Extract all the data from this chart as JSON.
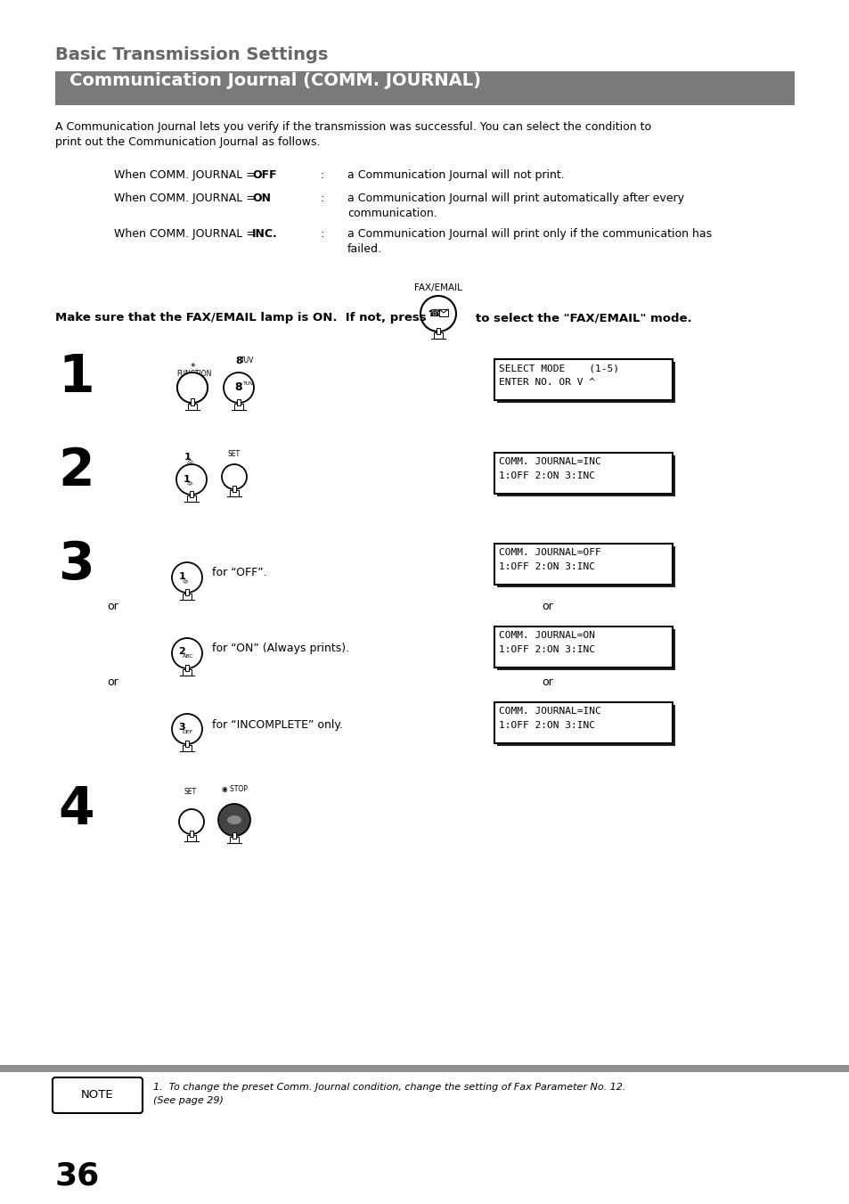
{
  "page_bg": "#ffffff",
  "title_text": "Basic Transmission Settings",
  "header_bg": "#7a7a7a",
  "header_text": "Communication Journal (COMM. JOURNAL)",
  "header_text_color": "#ffffff",
  "intro_line1": "A Communication Journal lets you verify if the transmission was successful. You can select the condition to",
  "intro_line2": "print out the Communication Journal as follows.",
  "cond1_plain": "When COMM. JOURNAL = ",
  "cond1_bold": "OFF",
  "cond1_desc": "a Communication Journal will not print.",
  "cond2_plain": "When COMM. JOURNAL = ",
  "cond2_bold": "ON",
  "cond2_desc1": "a Communication Journal will print automatically after every",
  "cond2_desc2": "communication.",
  "cond3_plain": "When COMM. JOURNAL = ",
  "cond3_bold": "INC.",
  "cond3_desc1": "a Communication Journal will print only if the communication has",
  "cond3_desc2": "failed.",
  "fax_label": "FAX/EMAIL",
  "fax_instruction_1": "Make sure that the FAX/EMAIL lamp is ON.  If not, press",
  "fax_instruction_2": "to select the \"FAX/EMAIL\" mode.",
  "step1_display": "SELECT MODE    (1-5)\nENTER NO. OR V ^",
  "step2_display": "COMM. JOURNAL=INC\n1:OFF 2:ON 3:INC",
  "step3a_display": "COMM. JOURNAL=OFF\n1:OFF 2:ON 3:INC",
  "step3b_display": "COMM. JOURNAL=ON\n1:OFF 2:ON 3:INC",
  "step3c_display": "COMM. JOURNAL=INC\n1:OFF 2:ON 3:INC",
  "step3a_label": "for “OFF”.",
  "step3b_label": "for “ON” (Always prints).",
  "step3c_label": "for “INCOMPLETE” only.",
  "note_text1": "1.  To change the preset Comm. Journal condition, change the setting of Fax Parameter No. 12.",
  "note_text2": "    (See page 29)",
  "page_number": "36",
  "gray_bar_color": "#909090",
  "display_border": "#000000",
  "display_bg": "#ffffff"
}
